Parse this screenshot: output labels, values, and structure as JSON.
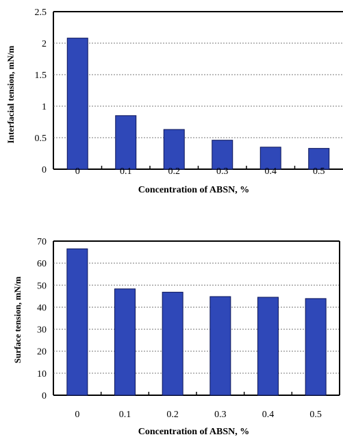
{
  "colors": {
    "bar_fill": "#2f48b8",
    "bar_stroke": "#0a1458",
    "axis": "#000000",
    "grid": "#777777"
  },
  "chart_data": [
    {
      "type": "bar",
      "categories": [
        "0",
        "0.1",
        "0.2",
        "0.3",
        "0.4",
        "0.5"
      ],
      "values": [
        2.08,
        0.85,
        0.63,
        0.46,
        0.35,
        0.33
      ],
      "title": "",
      "xlabel": "Concentration of ABSN, %",
      "ylabel": "Interfacial tension, mN/m",
      "ylim": [
        0,
        2.5
      ],
      "yticks": [
        "0",
        "0.5",
        "1",
        "1.5",
        "2",
        "2.5"
      ],
      "grid": "horizontal dotted"
    },
    {
      "type": "bar",
      "categories": [
        "0",
        "0.1",
        "0.2",
        "0.3",
        "0.4",
        "0.5"
      ],
      "values": [
        66.5,
        48.3,
        46.8,
        44.8,
        44.5,
        43.9
      ],
      "title": "",
      "xlabel": "Concentration of ABSN, %",
      "ylabel": "Surface tension, mN/m",
      "ylim": [
        0,
        70
      ],
      "yticks": [
        "0",
        "10",
        "20",
        "30",
        "40",
        "50",
        "60",
        "70"
      ],
      "grid": "horizontal dotted"
    }
  ]
}
